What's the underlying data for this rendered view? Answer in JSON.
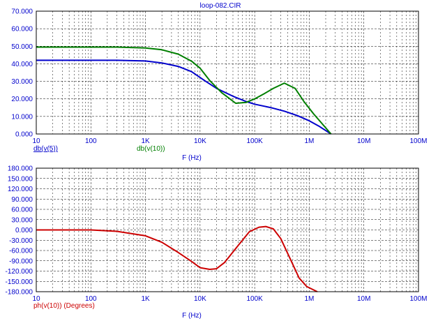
{
  "window": {
    "title": "loop-082.CIR"
  },
  "colors": {
    "frame": "#000000",
    "grid": "#000000",
    "text_blue": "#0000cc",
    "text_green": "#007f00",
    "text_red": "#cc0000"
  },
  "chart_data": [
    {
      "type": "line",
      "title": "loop-082.CIR",
      "xlabel": "F (Hz)",
      "x_scale": "log",
      "xlim": [
        10,
        100000000
      ],
      "x_ticks": [
        "10",
        "100",
        "1K",
        "10K",
        "100K",
        "1M",
        "10M",
        "100M"
      ],
      "ylim": [
        0,
        70
      ],
      "y_ticks": [
        "70.000",
        "60.000",
        "50.000",
        "40.000",
        "30.000",
        "20.000",
        "10.000",
        "0.000"
      ],
      "grid": true,
      "series": [
        {
          "name": "db(v(5))",
          "color": "#0000cc",
          "x": [
            10,
            100,
            300,
            1000,
            2000,
            4000,
            7000,
            12000,
            20000,
            40000,
            70000,
            100000,
            200000,
            350000,
            600000,
            1000000,
            1500000,
            2500000
          ],
          "values": [
            42,
            42,
            42,
            41.6,
            40.5,
            38.5,
            35.5,
            30.5,
            26,
            21.5,
            18.5,
            17,
            15,
            13,
            10.5,
            7.5,
            4.5,
            0
          ]
        },
        {
          "name": "db(v(10))",
          "color": "#007f00",
          "x": [
            10,
            100,
            300,
            1000,
            2000,
            4000,
            7000,
            10000,
            15000,
            25000,
            45000,
            70000,
            100000,
            150000,
            220000,
            350000,
            550000,
            800000,
            1200000,
            2500000
          ],
          "values": [
            49.5,
            49.5,
            49.5,
            49,
            48,
            45.5,
            41.5,
            37.5,
            30.5,
            23.5,
            17.5,
            18,
            20,
            23,
            26,
            29,
            26,
            18.5,
            11.5,
            0
          ]
        }
      ]
    },
    {
      "type": "line",
      "xlabel": "F (Hz)",
      "x_scale": "log",
      "xlim": [
        10,
        100000000
      ],
      "x_ticks": [
        "10",
        "100",
        "1K",
        "10K",
        "100K",
        "1M",
        "10M",
        "100M"
      ],
      "ylim": [
        -180,
        180
      ],
      "y_ticks": [
        "180.000",
        "150.000",
        "120.000",
        "90.000",
        "60.000",
        "30.000",
        "0.000",
        "-30.000",
        "-60.000",
        "-90.000",
        "-120.000",
        "-150.000",
        "-180.000"
      ],
      "grid": true,
      "series": [
        {
          "name": "ph(v(10)) (Degrees)",
          "color": "#cc0000",
          "x": [
            10,
            100,
            300,
            1000,
            2000,
            4000,
            7000,
            10000,
            15000,
            20000,
            28000,
            50000,
            80000,
            120000,
            160000,
            220000,
            300000,
            450000,
            650000,
            900000,
            1400000
          ],
          "values": [
            0,
            0,
            -4,
            -17,
            -36,
            -66,
            -92,
            -110,
            -115,
            -113,
            -95,
            -45,
            -5,
            8,
            10,
            3,
            -25,
            -85,
            -140,
            -165,
            -182
          ]
        }
      ]
    }
  ]
}
